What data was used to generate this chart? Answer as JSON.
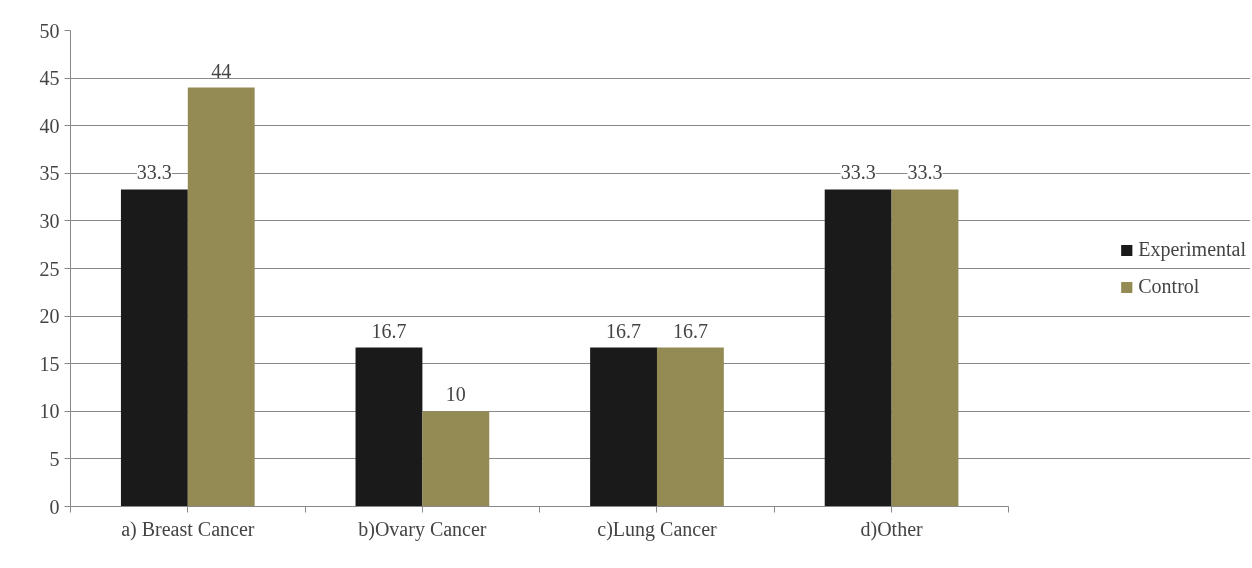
{
  "chart_data": {
    "type": "bar",
    "categories": [
      "a) Breast Cancer",
      "b)Ovary Cancer",
      "c)Lung Cancer",
      "d)Other"
    ],
    "series": [
      {
        "name": "Experimental",
        "color": "#1a1a1a",
        "values": [
          33.3,
          16.7,
          16.7,
          33.3
        ]
      },
      {
        "name": "Control",
        "color": "#948a54",
        "values": [
          44,
          10,
          16.7,
          33.3
        ]
      }
    ],
    "ylim": [
      0,
      50
    ],
    "yticks": [
      0,
      5,
      10,
      15,
      20,
      25,
      30,
      35,
      40,
      45,
      50
    ],
    "grid": "y",
    "legend": "right",
    "data_labels": true
  }
}
